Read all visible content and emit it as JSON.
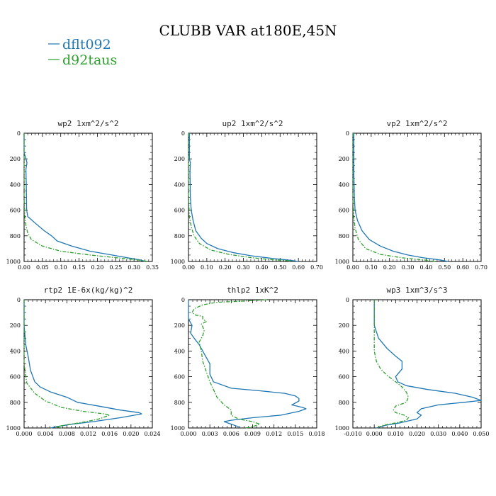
{
  "figure": {
    "title": "CLUBB VAR at180E,45N",
    "legend": [
      {
        "label": "dflt092",
        "color": "#1f77b4",
        "style": "solid"
      },
      {
        "label": "d92taus",
        "color": "#2ca02c",
        "style": "dashed"
      }
    ]
  },
  "chart_data": [
    {
      "type": "line",
      "title": "wp2  1xm^2/s^2",
      "xlim": [
        0,
        0.35
      ],
      "xticks": [
        "0.00",
        "0.05",
        "0.10",
        "0.15",
        "0.20",
        "0.25",
        "0.30",
        "0.35"
      ],
      "ylim": [
        1000,
        0
      ],
      "yticks": [
        "0",
        "200",
        "400",
        "600",
        "800",
        "1000"
      ],
      "series": [
        {
          "name": "dflt092",
          "points": [
            [
              0.0,
              0
            ],
            [
              0.0,
              150
            ],
            [
              0.008,
              230
            ],
            [
              0.005,
              280
            ],
            [
              0.006,
              400
            ],
            [
              0.007,
              600
            ],
            [
              0.01,
              650
            ],
            [
              0.03,
              700
            ],
            [
              0.055,
              760
            ],
            [
              0.075,
              800
            ],
            [
              0.09,
              840
            ],
            [
              0.13,
              880
            ],
            [
              0.18,
              920
            ],
            [
              0.24,
              950
            ],
            [
              0.29,
              975
            ],
            [
              0.32,
              990
            ],
            [
              0.33,
              1000
            ]
          ]
        },
        {
          "name": "d92taus",
          "points": [
            [
              0.0,
              0
            ],
            [
              0.0,
              500
            ],
            [
              0.002,
              650
            ],
            [
              0.005,
              720
            ],
            [
              0.01,
              780
            ],
            [
              0.02,
              830
            ],
            [
              0.05,
              880
            ],
            [
              0.1,
              920
            ],
            [
              0.18,
              950
            ],
            [
              0.25,
              970
            ],
            [
              0.3,
              985
            ],
            [
              0.34,
              1000
            ]
          ]
        }
      ]
    },
    {
      "type": "line",
      "title": "up2  1xm^2/s^2",
      "xlim": [
        0,
        0.7
      ],
      "xticks": [
        "0.00",
        "0.10",
        "0.20",
        "0.30",
        "0.40",
        "0.50",
        "0.60",
        "0.70"
      ],
      "ylim": [
        1000,
        0
      ],
      "yticks": [
        "0",
        "200",
        "400",
        "600",
        "800",
        "1000"
      ],
      "series": [
        {
          "name": "dflt092",
          "points": [
            [
              0.005,
              0
            ],
            [
              0.005,
              200
            ],
            [
              0.01,
              230
            ],
            [
              0.008,
              300
            ],
            [
              0.01,
              500
            ],
            [
              0.015,
              600
            ],
            [
              0.025,
              680
            ],
            [
              0.04,
              760
            ],
            [
              0.07,
              820
            ],
            [
              0.1,
              860
            ],
            [
              0.16,
              900
            ],
            [
              0.24,
              930
            ],
            [
              0.34,
              955
            ],
            [
              0.45,
              975
            ],
            [
              0.55,
              990
            ],
            [
              0.6,
              1000
            ]
          ]
        },
        {
          "name": "d92taus",
          "points": [
            [
              0.0,
              0
            ],
            [
              0.0,
              500
            ],
            [
              0.005,
              650
            ],
            [
              0.015,
              730
            ],
            [
              0.03,
              800
            ],
            [
              0.06,
              860
            ],
            [
              0.12,
              910
            ],
            [
              0.22,
              945
            ],
            [
              0.34,
              970
            ],
            [
              0.47,
              988
            ],
            [
              0.55,
              995
            ],
            [
              0.57,
              1000
            ]
          ]
        }
      ]
    },
    {
      "type": "line",
      "title": "vp2  1xm^2/s^2",
      "xlim": [
        0,
        0.7
      ],
      "xticks": [
        "0.00",
        "0.10",
        "0.20",
        "0.30",
        "0.40",
        "0.50",
        "0.60",
        "0.70"
      ],
      "ylim": [
        1000,
        0
      ],
      "yticks": [
        "0",
        "200",
        "400",
        "600",
        "800",
        "1000"
      ],
      "series": [
        {
          "name": "dflt092",
          "points": [
            [
              0.005,
              0
            ],
            [
              0.005,
              300
            ],
            [
              0.008,
              500
            ],
            [
              0.012,
              600
            ],
            [
              0.025,
              680
            ],
            [
              0.05,
              760
            ],
            [
              0.09,
              830
            ],
            [
              0.15,
              880
            ],
            [
              0.22,
              920
            ],
            [
              0.3,
              950
            ],
            [
              0.38,
              970
            ],
            [
              0.46,
              985
            ],
            [
              0.52,
              1000
            ]
          ]
        },
        {
          "name": "d92taus",
          "points": [
            [
              0.0,
              0
            ],
            [
              0.0,
              500
            ],
            [
              0.005,
              650
            ],
            [
              0.012,
              740
            ],
            [
              0.03,
              830
            ],
            [
              0.07,
              900
            ],
            [
              0.15,
              945
            ],
            [
              0.27,
              972
            ],
            [
              0.4,
              990
            ],
            [
              0.45,
              1000
            ]
          ]
        }
      ]
    },
    {
      "type": "line",
      "title": "rtp2  1E-6x(kg/kg)^2",
      "xlim": [
        0,
        0.024
      ],
      "xticks": [
        "0.000",
        "0.004",
        "0.008",
        "0.012",
        "0.016",
        "0.020",
        "0.024"
      ],
      "ylim": [
        1000,
        0
      ],
      "yticks": [
        "0",
        "200",
        "400",
        "600",
        "800",
        "1000"
      ],
      "series": [
        {
          "name": "dflt092",
          "points": [
            [
              0.0,
              0
            ],
            [
              0.0,
              200
            ],
            [
              0.0003,
              350
            ],
            [
              0.0008,
              450
            ],
            [
              0.0012,
              550
            ],
            [
              0.002,
              640
            ],
            [
              0.003,
              680
            ],
            [
              0.005,
              720
            ],
            [
              0.008,
              760
            ],
            [
              0.01,
              800
            ],
            [
              0.014,
              830
            ],
            [
              0.018,
              860
            ],
            [
              0.0215,
              880
            ],
            [
              0.022,
              890
            ],
            [
              0.018,
              920
            ],
            [
              0.013,
              950
            ],
            [
              0.009,
              970
            ],
            [
              0.006,
              990
            ],
            [
              0.005,
              1000
            ]
          ]
        },
        {
          "name": "d92taus",
          "points": [
            [
              0.0,
              0
            ],
            [
              0.0,
              500
            ],
            [
              0.0005,
              650
            ],
            [
              0.002,
              730
            ],
            [
              0.004,
              790
            ],
            [
              0.007,
              840
            ],
            [
              0.011,
              870
            ],
            [
              0.015,
              890
            ],
            [
              0.016,
              900
            ],
            [
              0.014,
              930
            ],
            [
              0.011,
              955
            ],
            [
              0.008,
              975
            ],
            [
              0.006,
              990
            ],
            [
              0.007,
              1000
            ]
          ]
        }
      ]
    },
    {
      "type": "line",
      "title": "thlp2  1xK^2",
      "xlim": [
        0,
        0.018
      ],
      "xticks": [
        "0.000",
        "0.003",
        "0.006",
        "0.009",
        "0.012",
        "0.015",
        "0.018"
      ],
      "ylim": [
        1000,
        0
      ],
      "yticks": [
        "0",
        "200",
        "400",
        "600",
        "800",
        "1000"
      ],
      "series": [
        {
          "name": "dflt092",
          "points": [
            [
              0.0,
              0
            ],
            [
              0.0,
              150
            ],
            [
              0.0005,
              200
            ],
            [
              0.0003,
              260
            ],
            [
              0.0008,
              300
            ],
            [
              0.0015,
              350
            ],
            [
              0.002,
              400
            ],
            [
              0.0025,
              450
            ],
            [
              0.003,
              500
            ],
            [
              0.003,
              580
            ],
            [
              0.0035,
              640
            ],
            [
              0.006,
              690
            ],
            [
              0.01,
              710
            ],
            [
              0.0135,
              730
            ],
            [
              0.015,
              750
            ],
            [
              0.0155,
              770
            ],
            [
              0.0155,
              790
            ],
            [
              0.0145,
              820
            ],
            [
              0.016,
              840
            ],
            [
              0.0165,
              850
            ],
            [
              0.0155,
              870
            ],
            [
              0.013,
              900
            ],
            [
              0.009,
              920
            ],
            [
              0.006,
              940
            ],
            [
              0.005,
              950
            ],
            [
              0.006,
              970
            ],
            [
              0.007,
              990
            ],
            [
              0.007,
              1000
            ]
          ]
        },
        {
          "name": "d92taus",
          "points": [
            [
              0.011,
              0
            ],
            [
              0.008,
              10
            ],
            [
              0.004,
              20
            ],
            [
              0.002,
              40
            ],
            [
              0.0008,
              70
            ],
            [
              0.0005,
              100
            ],
            [
              0.001,
              120
            ],
            [
              0.002,
              130
            ],
            [
              0.002,
              150
            ],
            [
              0.0025,
              170
            ],
            [
              0.0018,
              190
            ],
            [
              0.002,
              210
            ],
            [
              0.0022,
              240
            ],
            [
              0.002,
              280
            ],
            [
              0.0015,
              330
            ],
            [
              0.0018,
              400
            ],
            [
              0.002,
              480
            ],
            [
              0.0025,
              560
            ],
            [
              0.003,
              640
            ],
            [
              0.0035,
              700
            ],
            [
              0.004,
              760
            ],
            [
              0.005,
              820
            ],
            [
              0.006,
              860
            ],
            [
              0.006,
              900
            ],
            [
              0.007,
              930
            ],
            [
              0.009,
              950
            ],
            [
              0.01,
              970
            ],
            [
              0.009,
              990
            ],
            [
              0.008,
              1000
            ]
          ]
        }
      ]
    },
    {
      "type": "line",
      "title": "wp3  1xm^3/s^3",
      "xlim": [
        -0.01,
        0.05
      ],
      "xticks": [
        "-0.010",
        "0.000",
        "0.010",
        "0.020",
        "0.030",
        "0.040",
        "0.050"
      ],
      "ylim": [
        1000,
        0
      ],
      "yticks": [
        "0",
        "200",
        "400",
        "600",
        "800",
        "1000"
      ],
      "series": [
        {
          "name": "dflt092",
          "points": [
            [
              0.0,
              0
            ],
            [
              0.0,
              200
            ],
            [
              0.002,
              300
            ],
            [
              0.006,
              380
            ],
            [
              0.01,
              440
            ],
            [
              0.013,
              480
            ],
            [
              0.013,
              540
            ],
            [
              0.01,
              600
            ],
            [
              0.011,
              640
            ],
            [
              0.015,
              670
            ],
            [
              0.025,
              700
            ],
            [
              0.038,
              730
            ],
            [
              0.046,
              760
            ],
            [
              0.05,
              785
            ],
            [
              0.042,
              800
            ],
            [
              0.03,
              820
            ],
            [
              0.022,
              850
            ],
            [
              0.02,
              880
            ],
            [
              0.022,
              900
            ],
            [
              0.02,
              930
            ],
            [
              0.012,
              960
            ],
            [
              0.005,
              980
            ],
            [
              0.001,
              1000
            ]
          ]
        },
        {
          "name": "d92taus",
          "points": [
            [
              0.0,
              0
            ],
            [
              0.0,
              400
            ],
            [
              0.001,
              480
            ],
            [
              0.003,
              540
            ],
            [
              0.006,
              590
            ],
            [
              0.01,
              640
            ],
            [
              0.013,
              680
            ],
            [
              0.015,
              720
            ],
            [
              0.016,
              760
            ],
            [
              0.015,
              800
            ],
            [
              0.01,
              830
            ],
            [
              0.009,
              860
            ],
            [
              0.01,
              880
            ],
            [
              0.014,
              900
            ],
            [
              0.016,
              920
            ],
            [
              0.015,
              940
            ],
            [
              0.01,
              960
            ],
            [
              0.004,
              980
            ],
            [
              0.001,
              1000
            ]
          ]
        }
      ]
    }
  ]
}
